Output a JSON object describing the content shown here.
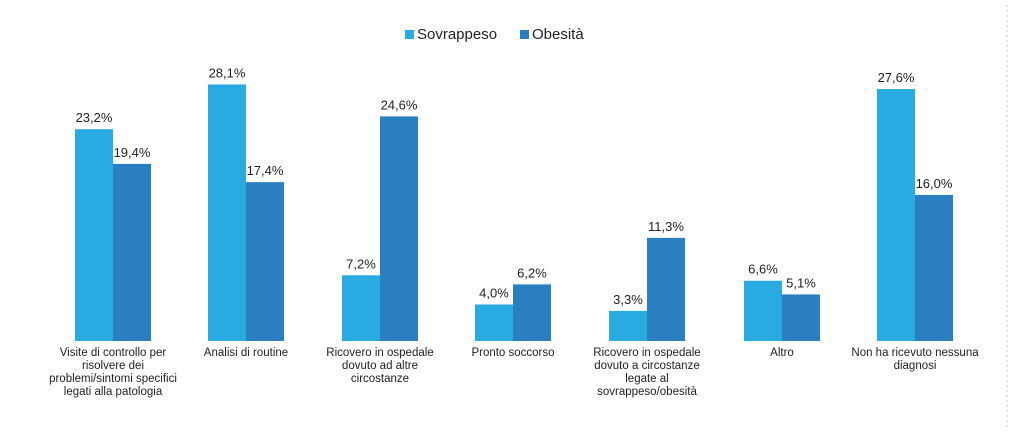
{
  "chart_data": {
    "type": "bar",
    "title": "",
    "xlabel": "",
    "ylabel": "",
    "ylim": [
      0,
      30
    ],
    "grid": false,
    "legend_position": "top-center",
    "categories": [
      "Visite di controllo per risolvere dei problemi/sintomi specifici legati alla patologia",
      "Analisi di routine",
      "Ricovero in ospedale dovuto ad altre circostanze",
      "Pronto soccorso",
      "Ricovero in ospedale dovuto a circostanze legate al sovrappeso/obesità",
      "Altro",
      "Non ha ricevuto nessuna diagnosi"
    ],
    "category_lines": [
      [
        "Visite di controllo per",
        "risolvere dei",
        "problemi/sintomi specifici",
        "legati alla patologia"
      ],
      [
        "Analisi di routine"
      ],
      [
        "Ricovero in ospedale",
        "dovuto ad altre",
        "circostanze"
      ],
      [
        "Pronto soccorso"
      ],
      [
        "Ricovero in ospedale",
        "dovuto a circostanze",
        "legate al",
        "sovrappeso/obesità"
      ],
      [
        "Altro"
      ],
      [
        "Non ha ricevuto nessuna",
        "diagnosi"
      ]
    ],
    "series": [
      {
        "name": "Sovrappeso",
        "color": "#29abe2",
        "values": [
          23.2,
          28.1,
          7.2,
          4.0,
          3.3,
          6.6,
          27.6
        ],
        "labels": [
          "23,2%",
          "28,1%",
          "7,2%",
          "4,0%",
          "3,3%",
          "6,6%",
          "27,6%"
        ]
      },
      {
        "name": "Obesità",
        "color": "#2a7fc1",
        "values": [
          19.4,
          17.4,
          24.6,
          6.2,
          11.3,
          5.1,
          16.0
        ],
        "labels": [
          "19,4%",
          "17,4%",
          "24,6%",
          "6,2%",
          "11,3%",
          "5,1%",
          "16,0%"
        ]
      }
    ]
  }
}
